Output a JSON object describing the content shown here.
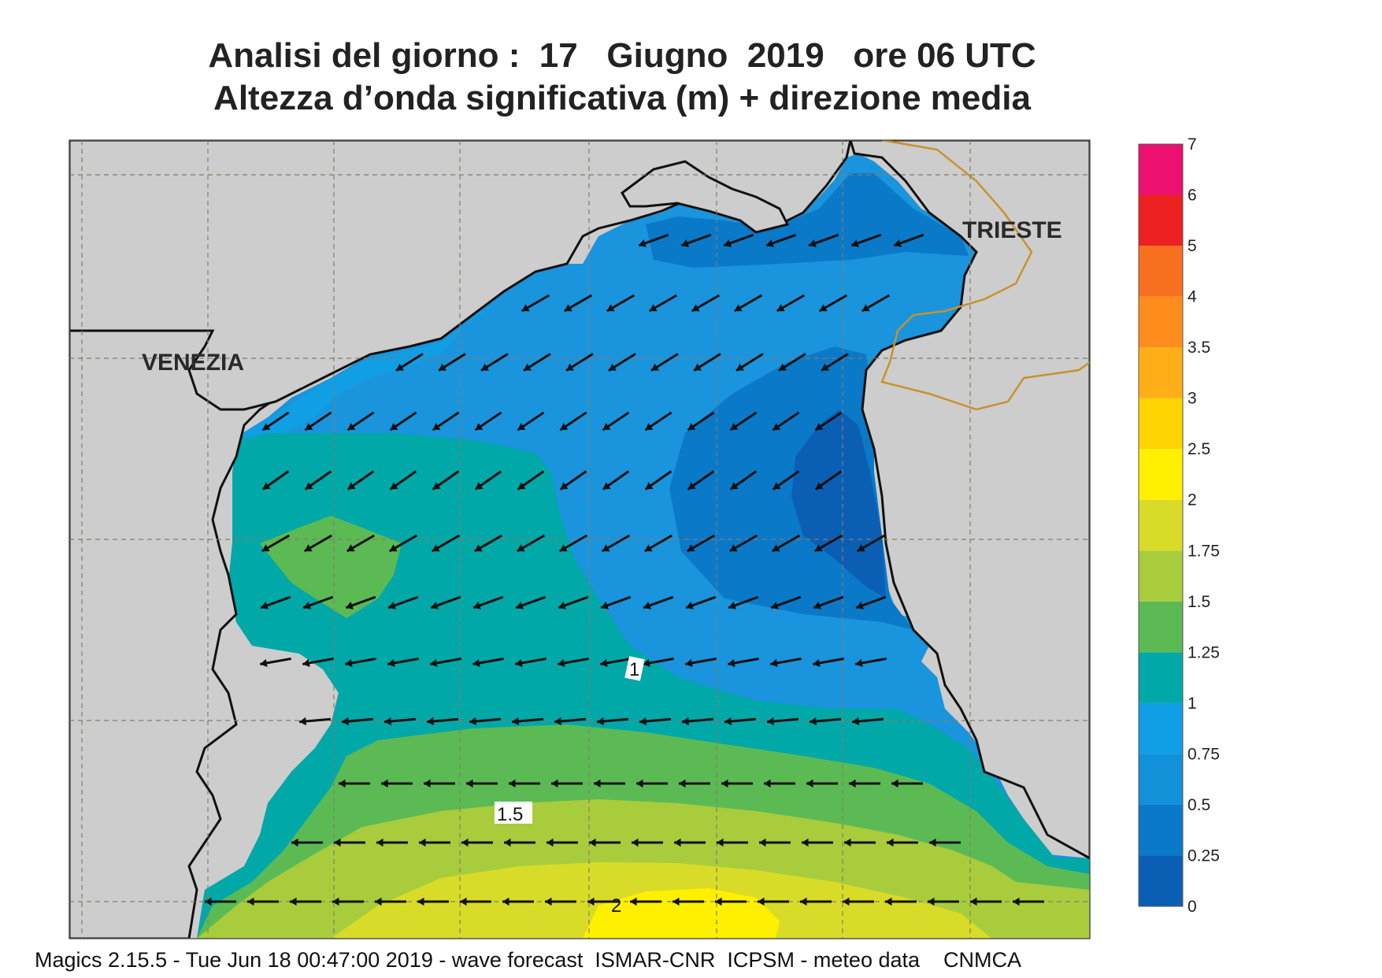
{
  "title": {
    "line1": "Analisi del giorno :  17   Giugno  2019   ore 06 UTC",
    "line2": "Altezza d’onda significativa (m) + direzione media"
  },
  "cities": {
    "venezia": "VENEZIA",
    "trieste": "TRIESTE"
  },
  "contour_labels": {
    "c1": "1",
    "c15": "1.5",
    "c2": "2"
  },
  "legend": {
    "levels": [
      "0",
      "0.25",
      "0.5",
      "0.75",
      "1",
      "1.25",
      "1.5",
      "1.75",
      "2",
      "2.5",
      "3",
      "3.5",
      "4",
      "5",
      "6",
      "7"
    ],
    "colors": [
      "#0a5fb4",
      "#0a79c8",
      "#1290d8",
      "#109ee4",
      "#00a8a8",
      "#5cba54",
      "#a8cc3c",
      "#d8dc28",
      "#fff000",
      "#ffd400",
      "#ffae18",
      "#ff8c1c",
      "#f77020",
      "#ec2020",
      "#ec1070"
    ]
  },
  "colors": {
    "land": "#cdcdcd",
    "sea_base": "#1a94dc",
    "border": "#c8922c",
    "coast": "#111111"
  },
  "footer": "Magics 2.15.5 - Tue Jun 18 00:47:00 2019 - wave forecast  ISMAR-CNR  ICPSM - meteo data    CNMCA"
}
